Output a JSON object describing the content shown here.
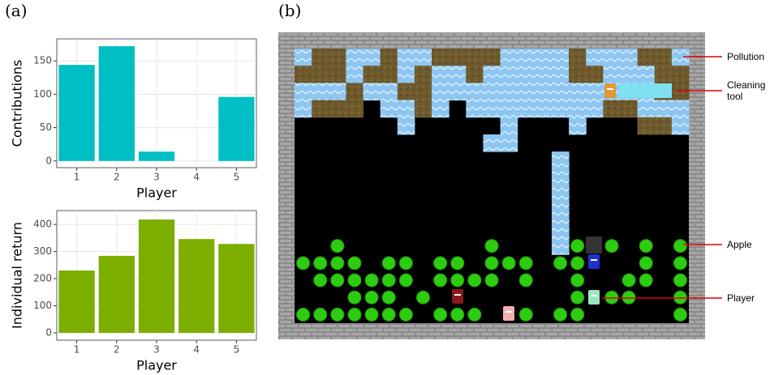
{
  "panel_labels": [
    "(a)",
    "(b)"
  ],
  "chart_data": [
    {
      "type": "bar",
      "x_label": "Player",
      "y_label": "Contributions",
      "categories": [
        "1",
        "2",
        "3",
        "4",
        "5"
      ],
      "values": [
        144,
        172,
        14,
        0,
        96
      ],
      "color": "#00bfc4",
      "ylim": [
        -10,
        183
      ],
      "yticks": [
        0,
        50,
        100,
        150
      ],
      "grid": true
    },
    {
      "type": "bar",
      "x_label": "Player",
      "y_label": "Individual return",
      "categories": [
        "1",
        "2",
        "3",
        "4",
        "5"
      ],
      "values": [
        230,
        284,
        418,
        346,
        328
      ],
      "color": "#7cae00",
      "ylim": [
        -27,
        451
      ],
      "yticks": [
        0,
        100,
        200,
        300,
        400
      ],
      "grid": true
    }
  ],
  "game": {
    "annotations": [
      "Pollution",
      "Cleaning tool",
      "Apple",
      "Player"
    ]
  }
}
